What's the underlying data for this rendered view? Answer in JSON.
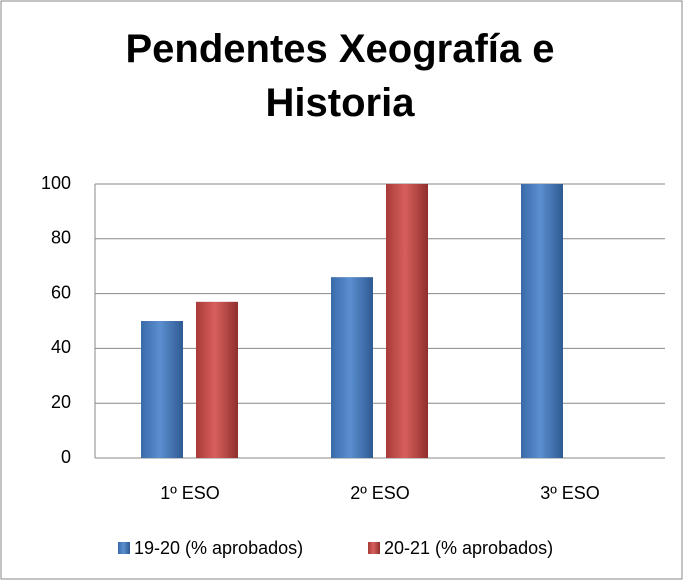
{
  "chart_data": {
    "type": "bar",
    "title": "Pendentes Xeografía e Historia",
    "categories": [
      "1º ESO",
      "2º ESO",
      "3º ESO"
    ],
    "series": [
      {
        "name": "19-20 (% aprobados)",
        "color": "#4f81bd",
        "values": [
          50,
          66,
          100
        ]
      },
      {
        "name": "20-21 (% aprobados)",
        "color": "#c0504d",
        "values": [
          57,
          100,
          null
        ]
      }
    ],
    "ylim": [
      0,
      100
    ],
    "yticks": [
      0,
      20,
      40,
      60,
      80,
      100
    ],
    "grid": true,
    "legend": "bottom"
  }
}
